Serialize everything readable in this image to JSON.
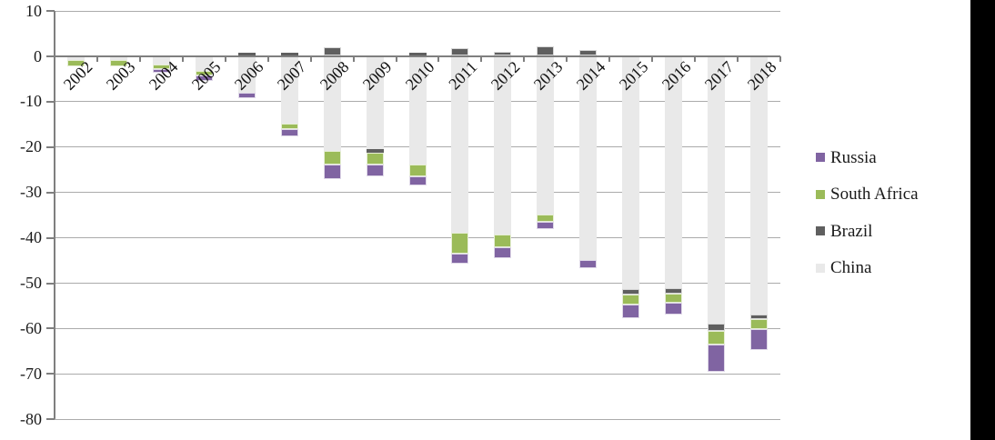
{
  "chart_data": {
    "type": "bar",
    "stacked": true,
    "title": "",
    "xlabel": "",
    "ylabel": "",
    "x": [
      "2002",
      "2003",
      "2004",
      "2005",
      "2006",
      "2007",
      "2008",
      "2009",
      "2010",
      "2011",
      "2012",
      "2013",
      "2014",
      "2015",
      "2016",
      "2017",
      "2018"
    ],
    "series": [
      {
        "name": "Russia",
        "color": "#8064A2",
        "values": [
          0,
          0,
          -0.9,
          -1.1,
          -1.2,
          -1.5,
          -3.2,
          -2.5,
          -2.0,
          -2.3,
          -2.5,
          -1.6,
          -1.8,
          -2.9,
          -2.6,
          -6.0,
          -4.6
        ]
      },
      {
        "name": "South Africa",
        "color": "#9BBB59",
        "values": [
          -1.3,
          -1.3,
          -1.0,
          -1.1,
          0,
          -1.2,
          -3.0,
          -2.7,
          -2.5,
          -4.5,
          -2.8,
          -1.6,
          0,
          -2.3,
          -2.0,
          -3.0,
          -2.2
        ]
      },
      {
        "name": "Brazil",
        "color": "#5F5F5F",
        "values": [
          0,
          0,
          0,
          0,
          0.7,
          0.8,
          2.0,
          -0.8,
          0.8,
          1.8,
          1.0,
          2.2,
          1.4,
          -1.1,
          -1.2,
          -1.7,
          -1.0
        ]
      },
      {
        "name": "China",
        "color": "#E9E9E9",
        "values": [
          -1.0,
          -1.0,
          -1.9,
          -3.3,
          -8.1,
          -15.0,
          -21.0,
          -20.5,
          -24.0,
          -39.0,
          -39.3,
          -35.0,
          -45.0,
          -51.5,
          -51.3,
          -59.0,
          -57.1
        ]
      }
    ],
    "stack_order_from_axis": [
      "China",
      "Brazil",
      "South Africa",
      "Russia"
    ],
    "ylim": [
      -80,
      10
    ],
    "yticks": [
      10,
      0,
      -10,
      -20,
      -30,
      -40,
      -50,
      -60,
      -70,
      -80
    ],
    "ytick_labels": [
      "10",
      "0",
      "-10",
      "-20",
      "-30",
      "-40",
      "-50",
      "-60",
      "-70",
      "-80"
    ],
    "grid": true,
    "legend_position": "right",
    "legend": [
      "Russia",
      "South Africa",
      "Brazil",
      "China"
    ],
    "style": {
      "axis_color": "#7F7F7F",
      "grid_color": "#ABABAB",
      "text_color": "#1a1a1a",
      "background": "#ffffff",
      "right_strip_color": "#000000"
    }
  }
}
